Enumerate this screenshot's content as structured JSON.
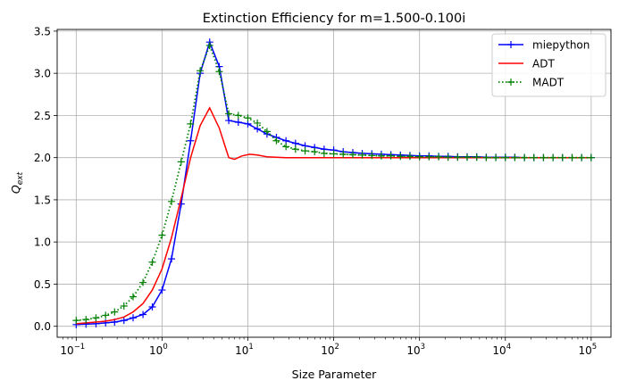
{
  "chart_data": {
    "type": "line",
    "title": "Extinction Efficiency for m=1.500-0.100i",
    "xlabel": "Size Parameter",
    "ylabel_base": "Q",
    "ylabel_sub": "ext",
    "xscale": "log",
    "xlim": [
      0.06,
      170000
    ],
    "ylim": [
      -0.13,
      3.52
    ],
    "xticks": [
      {
        "base": "10",
        "exp": "−1",
        "value": 0.1
      },
      {
        "base": "10",
        "exp": "0",
        "value": 1
      },
      {
        "base": "10",
        "exp": "1",
        "value": 10
      },
      {
        "base": "10",
        "exp": "2",
        "value": 100
      },
      {
        "base": "10",
        "exp": "3",
        "value": 1000
      },
      {
        "base": "10",
        "exp": "4",
        "value": 10000
      },
      {
        "base": "10",
        "exp": "5",
        "value": 100000
      }
    ],
    "yticks": [
      "0.0",
      "0.5",
      "1.0",
      "1.5",
      "2.0",
      "2.5",
      "3.0",
      "3.5"
    ],
    "ytick_values": [
      0.0,
      0.5,
      1.0,
      1.5,
      2.0,
      2.5,
      3.0,
      3.5
    ],
    "grid": true,
    "legend_position": "top-right",
    "series": [
      {
        "name": "miepython",
        "color": "#0000ff",
        "line": "solid",
        "marker": "plus",
        "x": [
          0.1,
          0.13,
          0.17,
          0.22,
          0.28,
          0.36,
          0.46,
          0.6,
          0.77,
          1.0,
          1.29,
          1.67,
          2.15,
          2.78,
          3.59,
          4.64,
          5.99,
          7.74,
          10.0,
          12.9,
          16.7,
          21.5,
          27.8,
          35.9,
          46.4,
          59.9,
          77.4,
          100,
          129,
          167,
          215,
          278,
          359,
          464,
          599,
          774,
          1000,
          1290,
          1670,
          2150,
          2780,
          3590,
          4640,
          5990,
          7740,
          10000,
          12900,
          16700,
          21500,
          27800,
          35900,
          46400,
          59900,
          77400,
          100000
        ],
        "y": [
          0.02,
          0.025,
          0.03,
          0.04,
          0.05,
          0.07,
          0.1,
          0.14,
          0.23,
          0.43,
          0.8,
          1.45,
          2.2,
          3.0,
          3.37,
          3.08,
          2.44,
          2.42,
          2.4,
          2.34,
          2.28,
          2.24,
          2.2,
          2.17,
          2.14,
          2.12,
          2.1,
          2.09,
          2.07,
          2.06,
          2.05,
          2.045,
          2.04,
          2.035,
          2.03,
          2.025,
          2.02,
          2.02,
          2.015,
          2.015,
          2.01,
          2.01,
          2.01,
          2.005,
          2.005,
          2.005,
          2.005,
          2.0,
          2.0,
          2.0,
          2.0,
          2.0,
          2.0,
          2.0,
          2.0
        ]
      },
      {
        "name": "ADT",
        "color": "#ff0000",
        "line": "solid",
        "marker": "none",
        "x": [
          0.1,
          0.13,
          0.17,
          0.22,
          0.28,
          0.36,
          0.46,
          0.6,
          0.77,
          1.0,
          1.29,
          1.67,
          2.15,
          2.78,
          3.59,
          4.64,
          5.99,
          7.0,
          8.5,
          10.5,
          12.9,
          16.7,
          21.5,
          27.8,
          46.4,
          100,
          1000,
          10000,
          100000
        ],
        "y": [
          0.03,
          0.04,
          0.05,
          0.06,
          0.08,
          0.11,
          0.17,
          0.27,
          0.43,
          0.68,
          1.05,
          1.52,
          2.0,
          2.38,
          2.59,
          2.35,
          2.0,
          1.98,
          2.02,
          2.04,
          2.03,
          2.01,
          2.005,
          2.0,
          2.0,
          2.0,
          2.0,
          2.0,
          2.0
        ]
      },
      {
        "name": "MADT",
        "color": "#008000",
        "line": "dotted",
        "marker": "plus",
        "x": [
          0.1,
          0.13,
          0.17,
          0.22,
          0.28,
          0.36,
          0.46,
          0.6,
          0.77,
          1.0,
          1.29,
          1.67,
          2.15,
          2.78,
          3.59,
          4.64,
          5.99,
          7.74,
          10.0,
          12.9,
          16.7,
          21.5,
          27.8,
          35.9,
          46.4,
          59.9,
          77.4,
          100,
          129,
          167,
          215,
          278,
          359,
          464,
          599,
          774,
          1000,
          1290,
          1670,
          2150,
          2780,
          3590,
          4640,
          5990,
          7740,
          10000,
          12900,
          16700,
          21500,
          27800,
          35900,
          46400,
          59900,
          77400,
          100000
        ],
        "y": [
          0.07,
          0.08,
          0.1,
          0.13,
          0.17,
          0.24,
          0.35,
          0.52,
          0.76,
          1.08,
          1.48,
          1.95,
          2.4,
          3.03,
          3.33,
          3.02,
          2.52,
          2.5,
          2.47,
          2.41,
          2.31,
          2.2,
          2.13,
          2.1,
          2.08,
          2.07,
          2.05,
          2.045,
          2.04,
          2.035,
          2.03,
          2.025,
          2.02,
          2.02,
          2.015,
          2.015,
          2.01,
          2.01,
          2.01,
          2.005,
          2.005,
          2.005,
          2.005,
          2.0,
          2.0,
          2.0,
          2.0,
          2.0,
          2.0,
          2.0,
          2.0,
          2.0,
          2.0,
          2.0,
          2.0
        ]
      }
    ]
  }
}
